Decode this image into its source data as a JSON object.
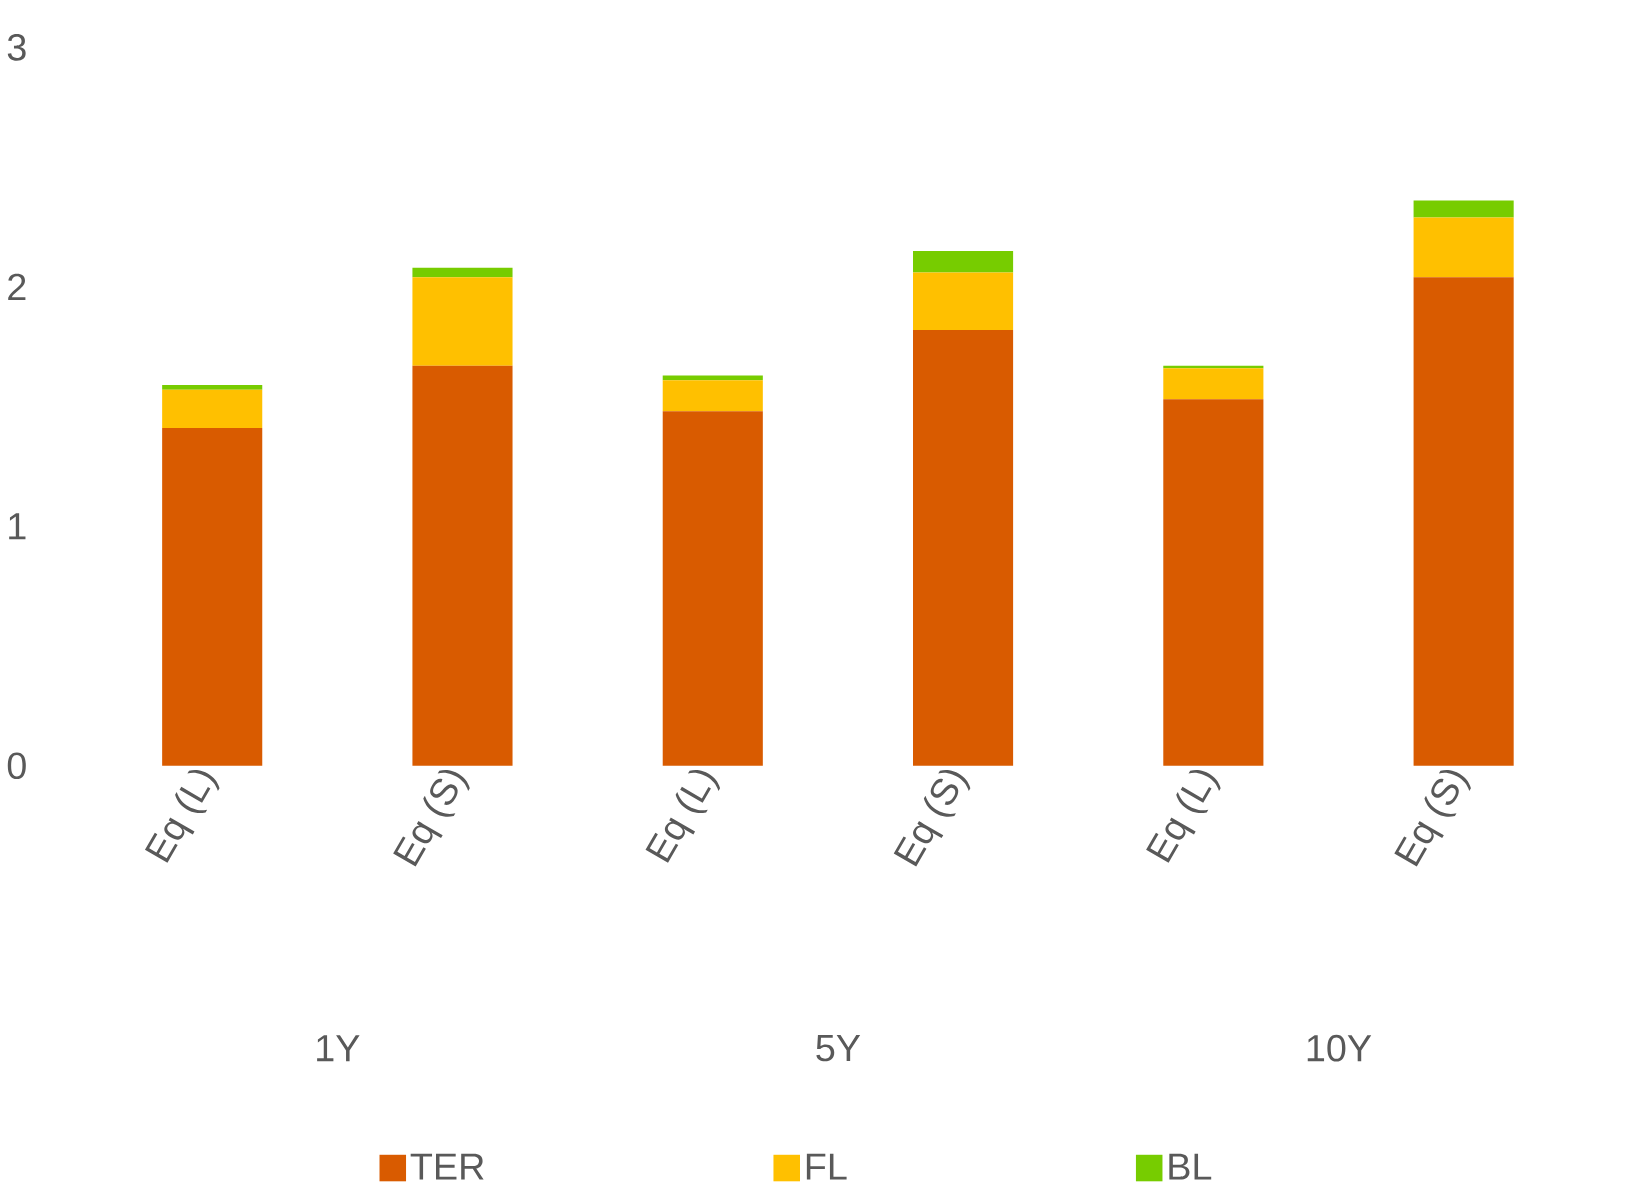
{
  "chart_data": {
    "type": "bar",
    "stacked": true,
    "categories": [
      "Eq (L)",
      "Eq (S)",
      "Eq (L)",
      "Eq (S)",
      "Eq (L)",
      "Eq (S)"
    ],
    "series": [
      {
        "name": "TER",
        "color": "#d95b00",
        "values": [
          1.41,
          1.67,
          1.48,
          1.82,
          1.53,
          2.04
        ]
      },
      {
        "name": "FL",
        "color": "#ffc000",
        "values": [
          0.16,
          0.37,
          0.13,
          0.24,
          0.13,
          0.25
        ]
      },
      {
        "name": "BL",
        "color": "#77cc00",
        "values": [
          0.02,
          0.04,
          0.02,
          0.09,
          0.01,
          0.07
        ]
      }
    ],
    "ylim": [
      0,
      3
    ],
    "yticks": [
      0,
      1,
      2,
      3
    ],
    "grid": false,
    "legend": "bottom",
    "annotations": [
      "1Y",
      "5Y",
      "10Y"
    ]
  }
}
